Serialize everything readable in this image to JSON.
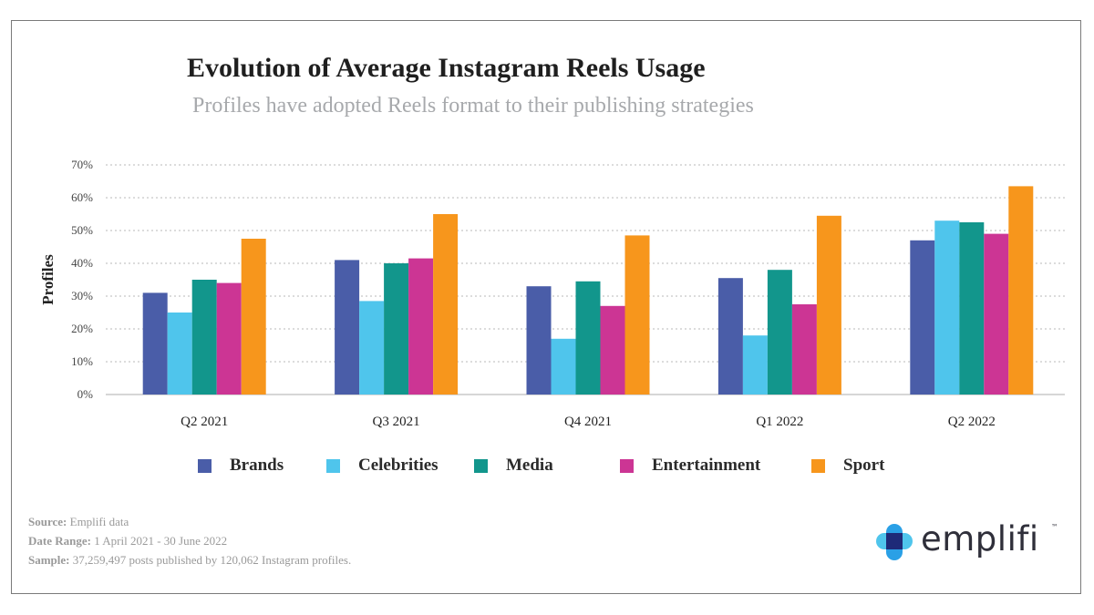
{
  "chart_data": {
    "type": "bar",
    "title": "Evolution of Average Instagram Reels Usage",
    "subtitle": "Profiles have adopted Reels format to their publishing strategies",
    "xlabel": "",
    "ylabel": "Profiles",
    "ylim": [
      0,
      70
    ],
    "yticks": [
      "0%",
      "10%",
      "20%",
      "30%",
      "40%",
      "50%",
      "60%",
      "70%"
    ],
    "grid": true,
    "legend_position": "bottom",
    "categories": [
      "Q2 2021",
      "Q3 2021",
      "Q4 2021",
      "Q1 2022",
      "Q2 2022"
    ],
    "series": [
      {
        "name": "Brands",
        "color": "#4a5da8",
        "values": [
          31,
          41,
          33,
          35.5,
          47
        ]
      },
      {
        "name": "Celebrities",
        "color": "#4fc5ec",
        "values": [
          25,
          28.5,
          17,
          18,
          53
        ]
      },
      {
        "name": "Media",
        "color": "#12968c",
        "values": [
          35,
          40,
          34.5,
          38,
          52.5
        ]
      },
      {
        "name": "Entertainment",
        "color": "#cc3594",
        "values": [
          34,
          41.5,
          27,
          27.5,
          49
        ]
      },
      {
        "name": "Sport",
        "color": "#f7961c",
        "values": [
          47.5,
          55,
          48.5,
          54.5,
          63.5
        ]
      }
    ]
  },
  "footer": {
    "source_label": "Source:",
    "source_value": "Emplifi data",
    "date_label": "Date Range:",
    "date_value": "1 April 2021 - 30 June 2022",
    "sample_label": "Sample:",
    "sample_value": "37,259,497 posts published by 120,062 Instagram profiles."
  },
  "logo": {
    "wordmark": "emplifi",
    "trademark": "™",
    "colors": [
      "#4fc5ec",
      "#1e2a78",
      "#2aa0e6"
    ]
  }
}
